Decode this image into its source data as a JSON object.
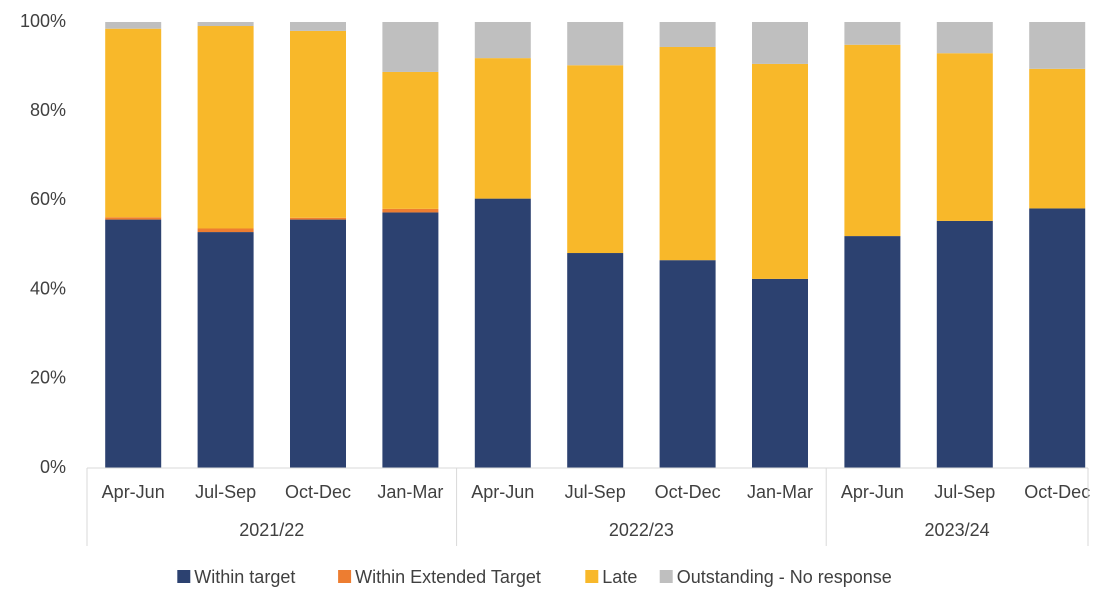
{
  "chart_data": {
    "type": "stacked_bar",
    "categories": [
      "Apr-Jun",
      "Jul-Sep",
      "Oct-Dec",
      "Jan-Mar",
      "Apr-Jun",
      "Jul-Sep",
      "Oct-Dec",
      "Jan-Mar",
      "Apr-Jun",
      "Jul-Sep",
      "Oct-Dec"
    ],
    "groups": [
      {
        "name": "2021/22",
        "size": 4
      },
      {
        "name": "2022/23",
        "size": 4
      },
      {
        "name": "2023/24",
        "size": 3
      }
    ],
    "series": [
      {
        "name": "Within target",
        "color": "#2c4170",
        "values": [
          55.7,
          52.9,
          55.7,
          57.3,
          60.4,
          48.2,
          46.6,
          42.4,
          52.0,
          55.4,
          58.2
        ]
      },
      {
        "name": "Within Extended Target",
        "color": "#ed7d31",
        "values": [
          0.5,
          0.8,
          0.4,
          0.8,
          0,
          0,
          0,
          0,
          0,
          0,
          0
        ]
      },
      {
        "name": "Late",
        "color": "#f8b82a",
        "values": [
          42.3,
          45.4,
          41.9,
          30.7,
          31.5,
          42.1,
          47.8,
          48.2,
          42.9,
          37.6,
          31.3
        ]
      },
      {
        "name": "Outstanding - No response",
        "color": "#bfbfbf",
        "values": [
          1.5,
          0.9,
          2.0,
          11.2,
          8.1,
          9.7,
          5.6,
          9.4,
          5.1,
          7.0,
          10.5
        ]
      }
    ],
    "ylim": [
      0,
      100
    ],
    "yticks": [
      {
        "value": 0,
        "label": "0%"
      },
      {
        "value": 20,
        "label": "20%"
      },
      {
        "value": 40,
        "label": "40%"
      },
      {
        "value": 60,
        "label": "60%"
      },
      {
        "value": 80,
        "label": "80%"
      },
      {
        "value": 100,
        "label": "100%"
      }
    ],
    "legend": "bottom"
  }
}
